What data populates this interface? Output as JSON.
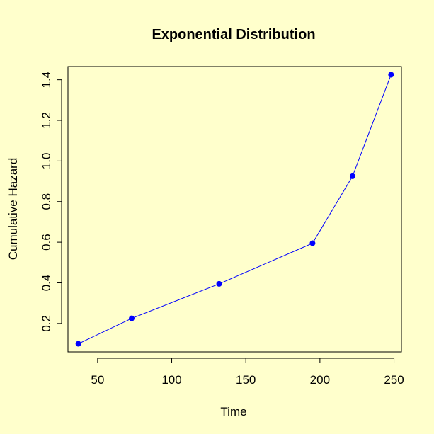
{
  "colors": {
    "background": "#ffffcc",
    "series": "#0000ff",
    "axis": "#000000"
  },
  "chart_data": {
    "type": "line",
    "title": "Exponential Distribution",
    "xlabel": "Time",
    "ylabel": "Cumulative Hazard",
    "xlim": [
      30,
      255
    ],
    "ylim": [
      0.06,
      1.465
    ],
    "xticks": [
      50,
      100,
      150,
      200,
      250
    ],
    "xtick_labels": [
      "50",
      "100",
      "150",
      "200",
      "250"
    ],
    "yticks": [
      0.2,
      0.4,
      0.6,
      0.8,
      1.0,
      1.2,
      1.4
    ],
    "ytick_labels": [
      "0.2",
      "0.4",
      "0.6",
      "0.8",
      "1.0",
      "1.2",
      "1.4"
    ],
    "grid": false,
    "series": [
      {
        "x": [
          37,
          73,
          132,
          195,
          222,
          248
        ],
        "y": [
          0.1,
          0.225,
          0.395,
          0.595,
          0.925,
          1.425
        ],
        "marker": "circle"
      }
    ]
  }
}
